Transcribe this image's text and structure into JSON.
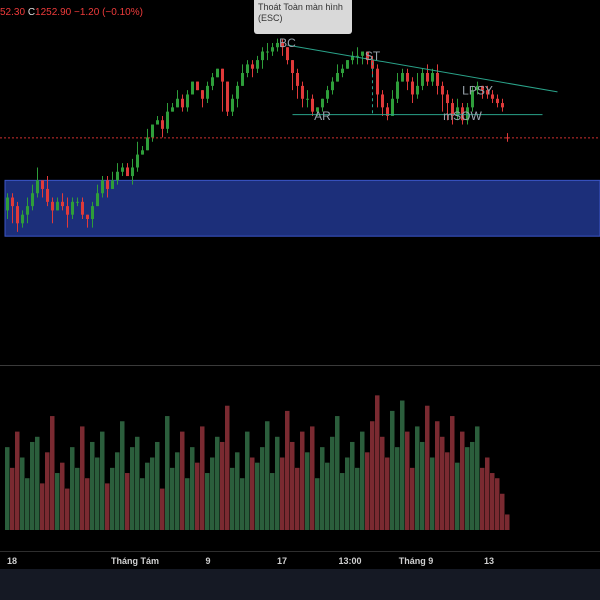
{
  "legend": {
    "prefix": "52.30",
    "c_label": "C",
    "close": "1252.90",
    "change": "−1.20 (−0.10%)"
  },
  "tooltip": {
    "line1": "Thoát Toàn màn hình",
    "line2": "(ESC)"
  },
  "colors": {
    "up": "#2e9e3a",
    "down": "#e03a3a",
    "zone": "#1c2f7a",
    "zone_border": "#3b56c8",
    "trendline": "#2aa38a",
    "price_line": "#d03030",
    "vol_up": "#2b5e3c",
    "vol_down": "#7a2a31",
    "label": "#9aa3ad"
  },
  "chart_data": {
    "type": "candlestick",
    "x_tick_labels": [
      "18",
      "Tháng Tám",
      "9",
      "17",
      "13:00",
      "Tháng 9",
      "13"
    ],
    "price_ylim": [
      1200,
      1285
    ],
    "last_price": 1252.9,
    "demand_zone": [
      1230,
      1243
    ],
    "annotations": [
      {
        "text": "BC",
        "x": 56,
        "y": 1274
      },
      {
        "text": "ST",
        "x": 73,
        "y": 1271
      },
      {
        "text": "AR",
        "x": 63,
        "y": 1257
      },
      {
        "text": "LPSY",
        "x": 94,
        "y": 1263
      },
      {
        "text": "mSOW",
        "x": 91,
        "y": 1257
      }
    ],
    "trendline": {
      "from": [
        56,
        1274.5
      ],
      "to": [
        110,
        1263.6
      ]
    },
    "support_line": {
      "from": [
        57,
        1258.3
      ],
      "to": [
        107,
        1258.3
      ]
    },
    "st_marker": {
      "x": 73,
      "from": 1270.5,
      "to": 1258.3
    },
    "volume_ylim": [
      0,
      140
    ],
    "candles": [
      [
        1236,
        1239,
        1240,
        1234
      ],
      [
        1239,
        1237,
        1240,
        1233
      ],
      [
        1237,
        1233,
        1238,
        1231
      ],
      [
        1233,
        1235,
        1236,
        1232
      ],
      [
        1235,
        1237,
        1239,
        1233
      ],
      [
        1237,
        1240,
        1242,
        1236
      ],
      [
        1240,
        1243,
        1246,
        1239
      ],
      [
        1243,
        1241,
        1243,
        1239
      ],
      [
        1241,
        1238,
        1244,
        1237
      ],
      [
        1238,
        1236,
        1239,
        1233
      ],
      [
        1236,
        1238,
        1239,
        1236
      ],
      [
        1238,
        1237,
        1240,
        1236
      ],
      [
        1237,
        1235,
        1239,
        1232
      ],
      [
        1235,
        1238,
        1239,
        1234
      ],
      [
        1238,
        1238,
        1239,
        1237
      ],
      [
        1238,
        1235,
        1239,
        1234
      ],
      [
        1235,
        1234,
        1235,
        1232
      ],
      [
        1234,
        1237,
        1238,
        1232
      ],
      [
        1237,
        1240,
        1242,
        1237
      ],
      [
        1240,
        1243,
        1244,
        1239
      ],
      [
        1243,
        1241,
        1244,
        1239
      ],
      [
        1241,
        1243,
        1245,
        1241
      ],
      [
        1243,
        1245,
        1247,
        1242
      ],
      [
        1245,
        1246,
        1247,
        1244
      ],
      [
        1246,
        1244,
        1247,
        1244
      ],
      [
        1244,
        1246,
        1248,
        1242
      ],
      [
        1246,
        1249,
        1252,
        1245
      ],
      [
        1249,
        1250,
        1251,
        1249
      ],
      [
        1250,
        1253,
        1255,
        1250
      ],
      [
        1253,
        1256,
        1256,
        1252
      ],
      [
        1256,
        1257,
        1258,
        1256
      ],
      [
        1257,
        1255,
        1258,
        1253
      ],
      [
        1255,
        1259,
        1261,
        1254
      ],
      [
        1259,
        1260,
        1261,
        1259
      ],
      [
        1260,
        1262,
        1264,
        1260
      ],
      [
        1262,
        1260,
        1263,
        1259
      ],
      [
        1260,
        1263,
        1264,
        1259
      ],
      [
        1263,
        1266,
        1266,
        1263
      ],
      [
        1266,
        1264,
        1266,
        1264
      ],
      [
        1264,
        1262,
        1264,
        1260
      ],
      [
        1262,
        1265,
        1266,
        1261
      ],
      [
        1265,
        1267,
        1268,
        1264
      ],
      [
        1267,
        1269,
        1269,
        1267
      ],
      [
        1269,
        1266,
        1269,
        1259
      ],
      [
        1266,
        1259,
        1266,
        1258
      ],
      [
        1259,
        1262,
        1263,
        1258
      ],
      [
        1262,
        1265,
        1266,
        1260
      ],
      [
        1265,
        1268,
        1270,
        1265
      ],
      [
        1268,
        1270,
        1271,
        1267
      ],
      [
        1270,
        1269,
        1271,
        1267
      ],
      [
        1269,
        1271,
        1272,
        1268
      ],
      [
        1271,
        1273,
        1274,
        1269
      ],
      [
        1273,
        1273,
        1275,
        1271
      ],
      [
        1273,
        1274,
        1275,
        1272
      ],
      [
        1274,
        1275,
        1276,
        1273
      ],
      [
        1275,
        1274,
        1276,
        1272
      ],
      [
        1274,
        1271,
        1274,
        1270
      ],
      [
        1271,
        1268,
        1271,
        1264
      ],
      [
        1268,
        1265,
        1269,
        1262
      ],
      [
        1265,
        1262,
        1266,
        1260
      ],
      [
        1262,
        1262,
        1264,
        1260
      ],
      [
        1262,
        1259,
        1263,
        1258
      ],
      [
        1259,
        1260,
        1260,
        1258
      ],
      [
        1260,
        1262,
        1262,
        1259
      ],
      [
        1262,
        1264,
        1265,
        1261
      ],
      [
        1264,
        1266,
        1267,
        1263
      ],
      [
        1266,
        1268,
        1270,
        1266
      ],
      [
        1268,
        1269,
        1270,
        1267
      ],
      [
        1269,
        1271,
        1271,
        1269
      ],
      [
        1271,
        1272,
        1273,
        1270
      ],
      [
        1272,
        1272,
        1274,
        1270
      ],
      [
        1272,
        1273,
        1273,
        1270
      ],
      [
        1273,
        1271,
        1273,
        1270
      ],
      [
        1271,
        1269,
        1272,
        1267
      ],
      [
        1269,
        1263,
        1270,
        1260
      ],
      [
        1263,
        1260,
        1264,
        1258
      ],
      [
        1260,
        1258,
        1261,
        1257
      ],
      [
        1258,
        1262,
        1264,
        1258
      ],
      [
        1262,
        1266,
        1268,
        1261
      ],
      [
        1266,
        1268,
        1269,
        1266
      ],
      [
        1268,
        1266,
        1269,
        1264
      ],
      [
        1266,
        1263,
        1267,
        1261
      ],
      [
        1263,
        1265,
        1268,
        1262
      ],
      [
        1265,
        1268,
        1269,
        1264
      ],
      [
        1268,
        1266,
        1270,
        1265
      ],
      [
        1266,
        1268,
        1269,
        1265
      ],
      [
        1268,
        1265,
        1270,
        1263
      ],
      [
        1265,
        1263,
        1266,
        1259
      ],
      [
        1263,
        1261,
        1264,
        1257
      ],
      [
        1261,
        1258,
        1262,
        1256
      ],
      [
        1258,
        1260,
        1262,
        1257
      ],
      [
        1260,
        1257,
        1261,
        1256
      ],
      [
        1257,
        1260,
        1261,
        1256
      ],
      [
        1260,
        1264,
        1265,
        1259
      ],
      [
        1264,
        1265,
        1266,
        1263
      ],
      [
        1265,
        1264,
        1265,
        1262
      ],
      [
        1264,
        1263,
        1265,
        1262
      ],
      [
        1263,
        1262,
        1264,
        1261
      ],
      [
        1262,
        1261,
        1263,
        1260
      ],
      [
        1261,
        1260,
        1262,
        1259
      ],
      [
        1253,
        1252.9,
        1254,
        1252
      ]
    ],
    "volumes": [
      80,
      60,
      95,
      70,
      50,
      85,
      90,
      45,
      75,
      110,
      55,
      65,
      40,
      80,
      60,
      100,
      50,
      85,
      70,
      95,
      45,
      60,
      75,
      105,
      55,
      80,
      90,
      50,
      65,
      70,
      85,
      40,
      110,
      60,
      75,
      95,
      50,
      80,
      65,
      100,
      55,
      70,
      90,
      85,
      120,
      60,
      75,
      50,
      95,
      70,
      65,
      80,
      105,
      55,
      90,
      70,
      115,
      85,
      60,
      95,
      75,
      100,
      50,
      80,
      65,
      90,
      110,
      55,
      70,
      85,
      60,
      95,
      75,
      105,
      130,
      90,
      70,
      115,
      80,
      125,
      95,
      60,
      100,
      85,
      120,
      70,
      105,
      90,
      75,
      110,
      65,
      95,
      80,
      85,
      100,
      60,
      70,
      55,
      50,
      35,
      15
    ]
  }
}
